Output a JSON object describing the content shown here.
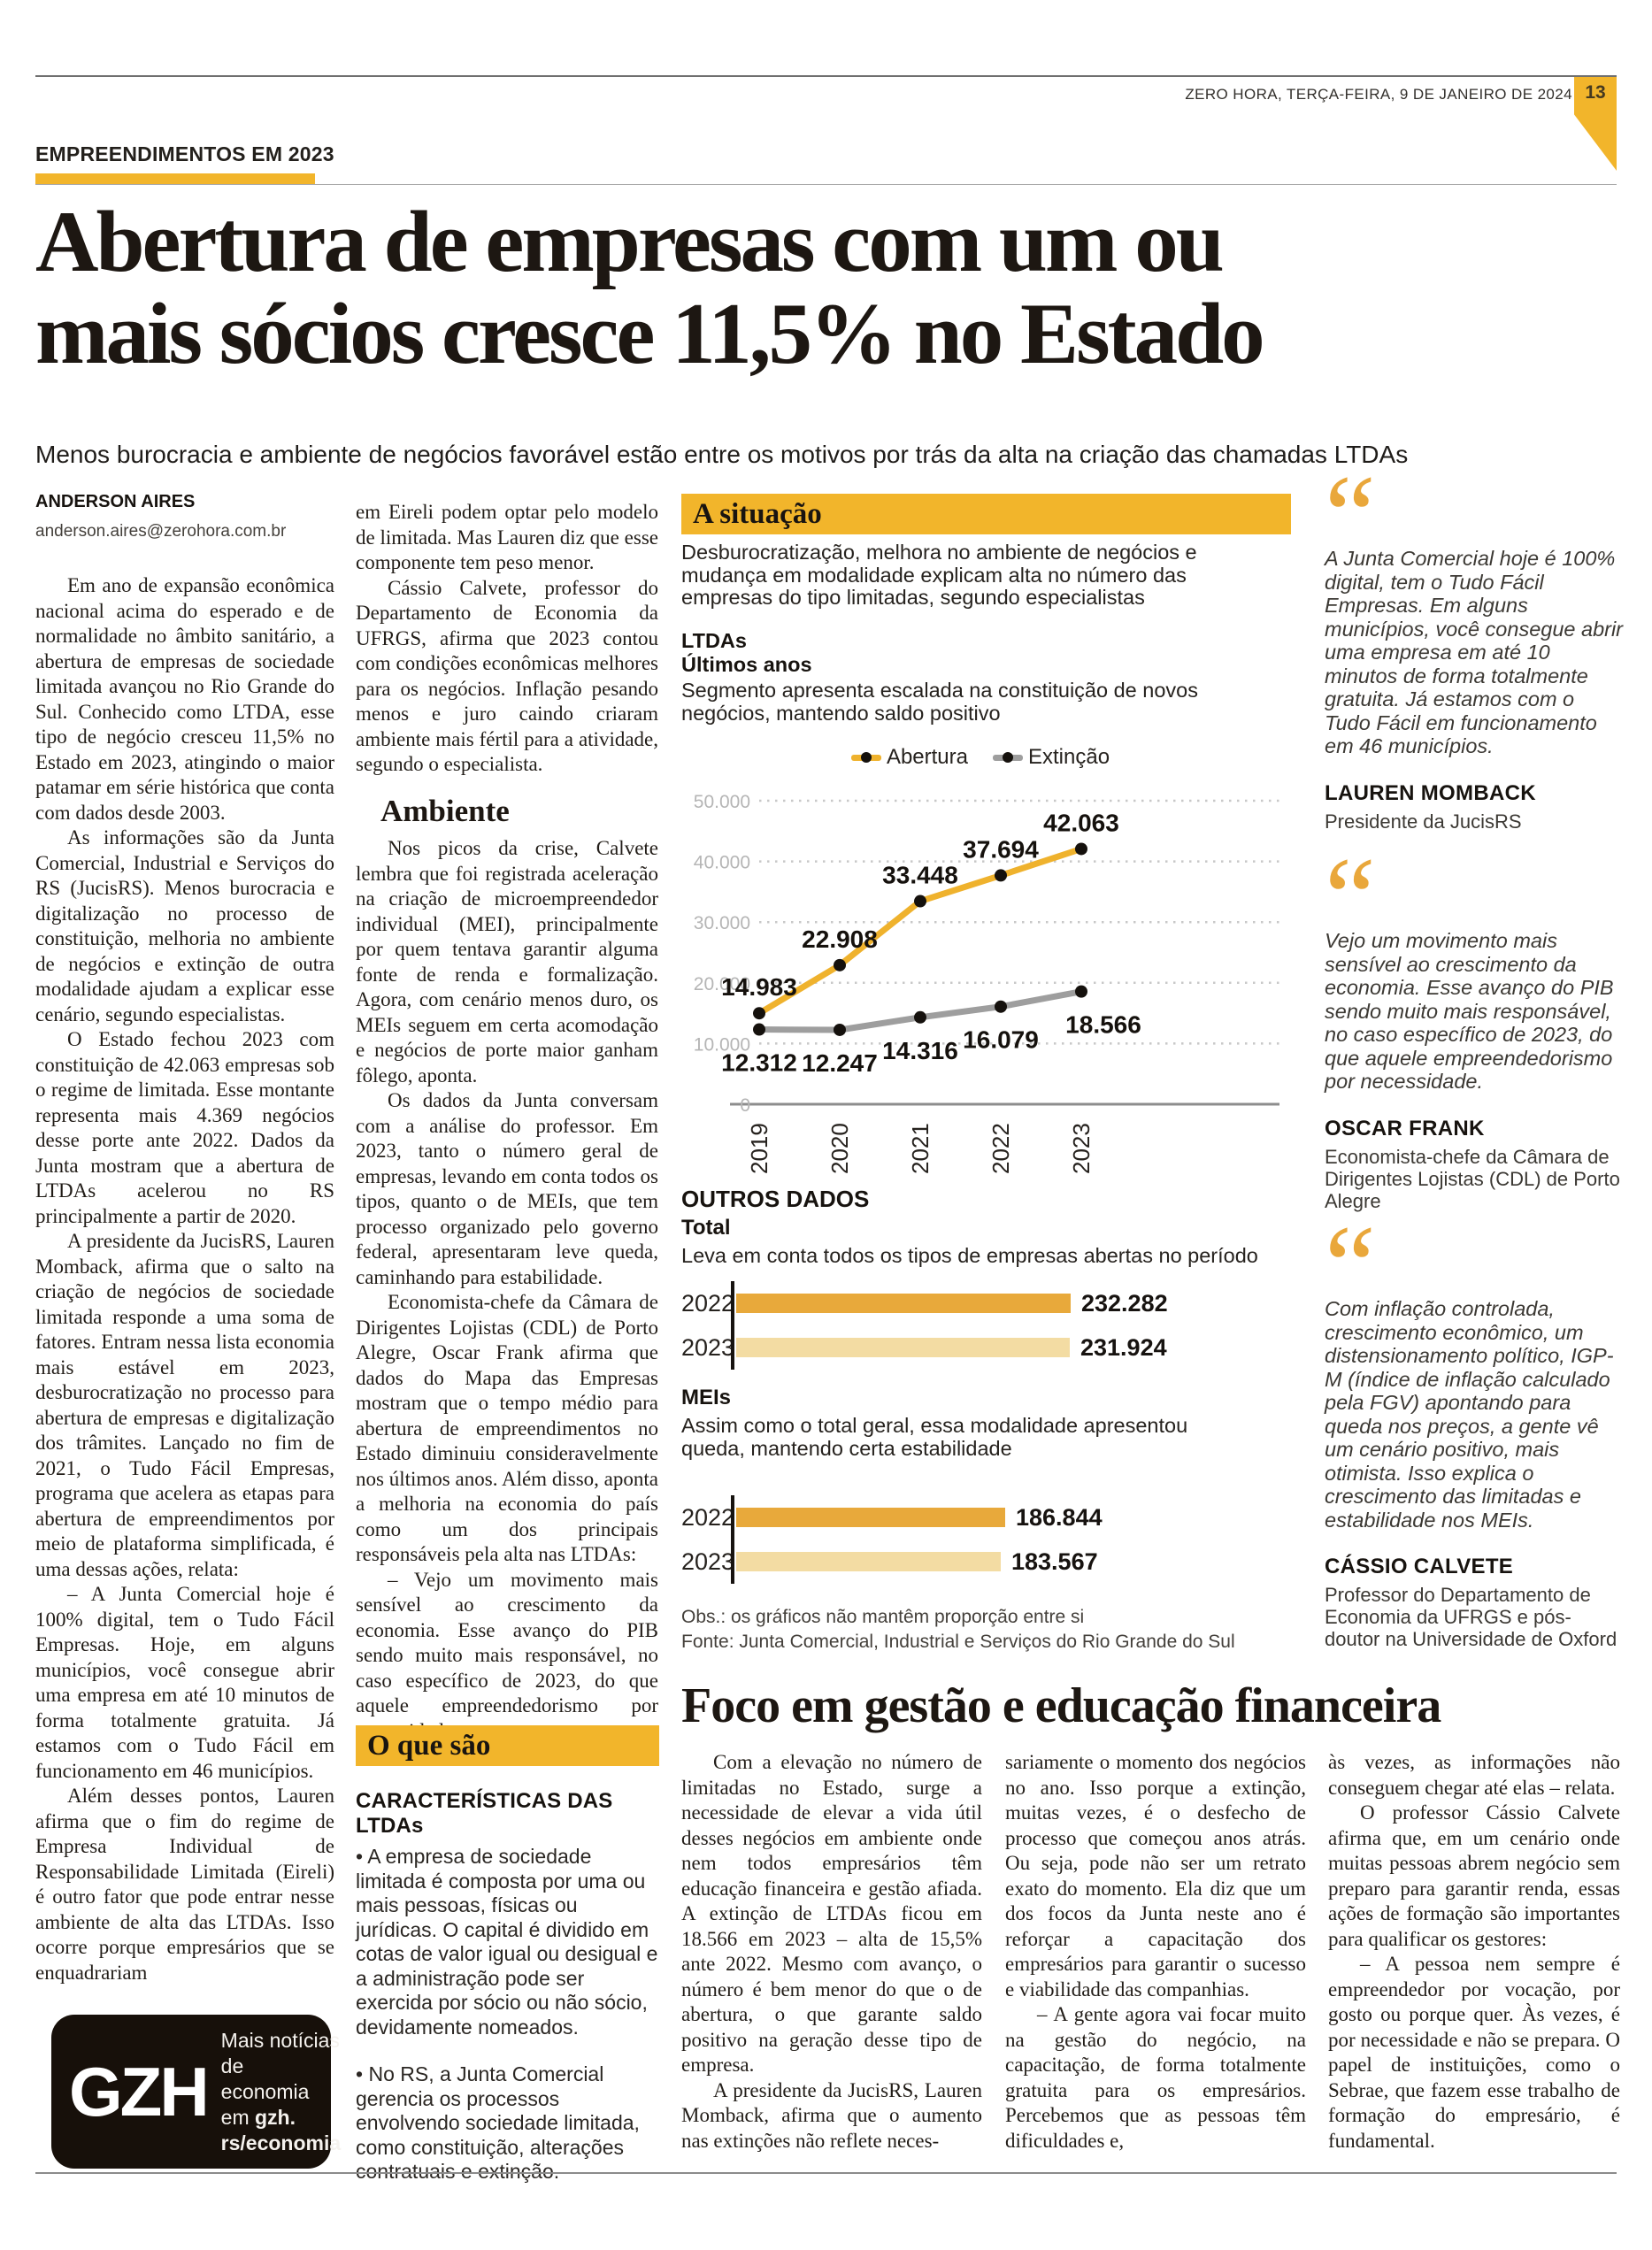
{
  "page": {
    "masthead": "ZERO HORA, TERÇA-FEIRA, 9 DE JANEIRO DE 2024",
    "page_number": "13",
    "kicker": "EMPREENDIMENTOS EM 2023",
    "headline_line1": "Abertura de empresas com um ou",
    "headline_line2": "mais sócios cresce 11,5% no Estado",
    "subheadline": "Menos burocracia e ambiente de negócios favorável estão entre os motivos por trás da alta na criação das chamadas LTDAs",
    "byline_name": "ANDERSON AIRES",
    "byline_email": "anderson.aires@zerohora.com.br"
  },
  "article": {
    "col1_paragraphs": [
      "Em ano de expansão econômica nacional acima do esperado e de normalidade no âmbito sanitário, a abertura de empresas de sociedade limitada avançou no Rio Grande do Sul. Conhecido como LTDA, esse tipo de negócio cresceu 11,5% no Estado em 2023, atingindo o maior patamar em série histórica que conta com dados desde 2003.",
      "As informações são da Junta Comercial, Industrial e Serviços do RS (JucisRS). Menos burocracia e digitalização no processo de constituição, melhoria no ambiente de negócios e extinção de outra modalidade ajudam a explicar esse cenário, segundo especialistas.",
      "O Estado fechou 2023 com constituição de 42.063 empresas sob o regime de limitada. Esse montante representa mais 4.369 negócios desse porte ante 2022. Dados da Junta mostram que a abertura de LTDAs acelerou no RS principalmente a partir de 2020.",
      "A presidente da JucisRS, Lauren Momback, afirma que o salto na criação de negócios de sociedade limitada responde a uma soma de fatores. Entram nessa lista economia mais estável em 2023, desburocratização no processo para abertura de empresas e digitalização dos trâmites. Lançado no fim de 2021, o Tudo Fácil Empresas, programa que acelera as etapas para abertura de empreendimentos por meio de plataforma simplificada, é uma dessas ações, relata:",
      "– A Junta Comercial hoje é 100% digital, tem o Tudo Fácil Empresas. Hoje, em alguns municípios, você consegue abrir uma empresa em até 10 minutos de forma totalmente gratuita. Já estamos com o Tudo Fácil em funcionamento em 46 municípios.",
      "Além desses pontos, Lauren afirma que o fim do regime de Empresa Individual de Responsabilidade Limitada (Eireli) é outro fator que pode entrar nesse ambiente de alta das LTDAs. Isso ocorre porque empresários que se enquadrariam"
    ],
    "col2_paragraphs_before": [
      "em Eireli podem optar pelo modelo de limitada. Mas Lauren diz que esse componente tem peso menor.",
      "Cássio Calvete, professor do Departamento de Economia da UFRGS, afirma que 2023 contou com condições econômicas melhores para os negócios. Inflação pesando menos e juro caindo criaram ambiente mais fértil para a atividade, segundo o especialista."
    ],
    "col2_subhead": "Ambiente",
    "col2_paragraphs_after": [
      "Nos picos da crise, Calvete lembra que foi registrada aceleração na criação de microempreendedor individual (MEI), principalmente por quem tentava garantir alguma fonte de renda e formalização. Agora, com cenário menos duro, os MEIs seguem em certa acomodação e negócios de porte maior ganham fôlego, aponta.",
      "Os dados da Junta conversam com a análise do professor. Em 2023, tanto o número geral de empresas, levando em conta todos os tipos, quanto o de MEIs, que tem processo organizado pelo governo federal, apresentaram leve queda, caminhando para estabilidade.",
      "Economista-chefe da Câmara de Dirigentes Lojistas (CDL) de Porto Alegre, Oscar Frank afirma que dados do Mapa das Empresas mostram que o tempo médio para abertura de empreendimentos no Estado diminuiu consideravelmente nos últimos anos. Além disso, aponta a melhoria na economia do país como um dos principais responsáveis pela alta nas LTDAs:",
      "– Vejo um movimento mais sensível ao crescimento da economia. Esse avanço do PIB sendo muito mais responsável, no caso específico de 2023, do que aquele empreendedorismo por necessidade."
    ]
  },
  "box_oque": {
    "title": "O que são",
    "subtitle": "CARACTERÍSTICAS DAS LTDAs",
    "bullet_glyph": "•",
    "bullets": [
      "A empresa de sociedade limitada é composta por uma ou mais pessoas, físicas ou jurídicas. O capital é dividido em cotas de valor igual ou desigual e a administração pode ser exercida por sócio ou não sócio, devidamente nomeados.",
      "No RS, a Junta Comercial gerencia os processos envolvendo sociedade limitada, como constituição, alterações contratuais e extinção."
    ]
  },
  "infographic": {
    "title": "A situação",
    "lead": "Desburocratização, melhora no ambiente de negócios e mudança em modalidade explicam alta no número das empresas do tipo limitadas, segundo especialistas",
    "chart1_label1": "LTDAs",
    "chart1_label2": "Últimos anos",
    "chart1_desc": "Segmento apresenta escalada na constituição de novos negócios, mantendo saldo positivo",
    "outros_title": "OUTROS DADOS",
    "total_label": "Total",
    "total_desc": "Leva em conta todos os tipos de empresas abertas no período",
    "meis_label": "MEIs",
    "meis_desc": "Assim como o total geral, essa modalidade apresentou queda, mantendo certa estabilidade",
    "obs": "Obs.: os gráficos não mantêm proporção entre si",
    "fonte": "Fonte: Junta Comercial, Industrial e Serviços do Rio Grande do Sul"
  },
  "chart_data": [
    {
      "type": "line",
      "title": "LTDAs — Últimos anos",
      "x": [
        "2019",
        "2020",
        "2021",
        "2022",
        "2023"
      ],
      "series": [
        {
          "name": "Abertura",
          "color": "#EFB22D",
          "values": [
            14983,
            22908,
            33448,
            37694,
            42063
          ],
          "labels": [
            "14.983",
            "22.908",
            "33.448",
            "37.694",
            "42.063"
          ]
        },
        {
          "name": "Extinção",
          "color": "#9E9E9E",
          "values": [
            12312,
            12247,
            14316,
            16079,
            18566
          ],
          "labels": [
            "12.312",
            "12.247",
            "14.316",
            "16.079",
            "18.566"
          ]
        }
      ],
      "ylim": [
        0,
        50000
      ],
      "yticks": [
        {
          "v": 0,
          "label": "0"
        },
        {
          "v": 10000,
          "label": "10.000"
        },
        {
          "v": 20000,
          "label": "20.000"
        },
        {
          "v": 30000,
          "label": "30.000"
        },
        {
          "v": 40000,
          "label": "40.000"
        },
        {
          "v": 50000,
          "label": "50.000"
        }
      ],
      "grid": "dotted-horizontal",
      "legend_position": "top-center"
    },
    {
      "type": "bar",
      "title": "Total",
      "categories": [
        "2022",
        "2023"
      ],
      "values": [
        232282,
        231924
      ],
      "labels": [
        "232.282",
        "231.924"
      ],
      "colors": [
        "#E8A93B",
        "#F3DCA3"
      ]
    },
    {
      "type": "bar",
      "title": "MEIs",
      "categories": [
        "2022",
        "2023"
      ],
      "values": [
        186844,
        183567
      ],
      "labels": [
        "186.844",
        "183.567"
      ],
      "colors": [
        "#E8A93B",
        "#F3DCA3"
      ]
    }
  ],
  "quotes": [
    {
      "mark": "“",
      "text": "A Junta Comercial hoje é 100% digital, tem o Tudo Fácil Empresas. Em alguns municípios, você consegue abrir uma empresa em até 10 minutos de forma totalmente gratuita. Já estamos com o Tudo Fácil em funcionamento em 46 municípios.",
      "name": "LAUREN MOMBACK",
      "role": "Presidente da JucisRS"
    },
    {
      "mark": "“",
      "text": "Vejo um movimento mais sensível ao crescimento da economia. Esse avanço do PIB sendo muito mais responsável, no caso específico de 2023, do que aquele empreendedorismo por necessidade.",
      "name": "OSCAR FRANK",
      "role": "Economista-chefe da Câmara de Dirigentes Lojistas (CDL) de Porto Alegre"
    },
    {
      "mark": "“",
      "text": "Com inflação controlada, crescimento econômico, um distensionamento político, IGP-M (índice de inflação calculado pela FGV) apontando para queda nos preços, a gente vê um cenário positivo, mais otimista. Isso explica o crescimento das limitadas e estabilidade nos MEIs.",
      "name": "CÁSSIO CALVETE",
      "role": "Professor do Departamento de Economia da UFRGS e pós-doutor na Universidade de Oxford"
    }
  ],
  "bottom_article": {
    "headline": "Foco em gestão e educação financeira",
    "col1_paragraphs": [
      "Com a elevação no número de limitadas no Estado, surge a necessidade de elevar a vida útil desses negócios em ambiente onde nem todos empresários têm educação financeira e gestão afiada. A extinção de LTDAs ficou em 18.566 em 2023 – alta de 15,5% ante 2022. Mesmo com avanço, o número é bem menor do que o de abertura, o que garante saldo positivo na geração desse tipo de empresa.",
      "A presidente da JucisRS, Lauren Momback, afirma que o aumento nas extinções não reflete neces-"
    ],
    "col2_paragraphs": [
      "sariamente o momento dos negócios no ano. Isso porque a extinção, muitas vezes, é o desfecho de processo que começou anos atrás. Ou seja, pode não ser um retrato exato do momento. Ela diz que um dos focos da Junta neste ano é reforçar a capacitação dos empresários para garantir o sucesso e viabilidade das companhias.",
      "– A gente agora vai focar muito na gestão do negócio, na capacitação, de forma totalmente gratuita para os empresários. Percebemos que as pessoas têm dificuldades e,"
    ],
    "col3_paragraphs": [
      "às vezes, as informações não conseguem chegar até elas – relata.",
      "O professor Cássio Calvete afirma que, em um cenário onde muitas pessoas abrem negócio sem preparo para garantir renda, essas ações de formação são importantes para qualificar os gestores:",
      "– A pessoa nem sempre é empreendedor por vocação, por gosto ou porque quer. Às vezes, é por necessidade e não se prepara. O papel de instituições, como o Sebrae, que fazem esse trabalho de formação do empresário, é fundamental."
    ]
  },
  "gzh": {
    "logo": "GZH",
    "line1": "Mais notícias de",
    "line2_normal": "economia em ",
    "line2_bold": "gzh.",
    "line3_bold": "rs/economia"
  }
}
